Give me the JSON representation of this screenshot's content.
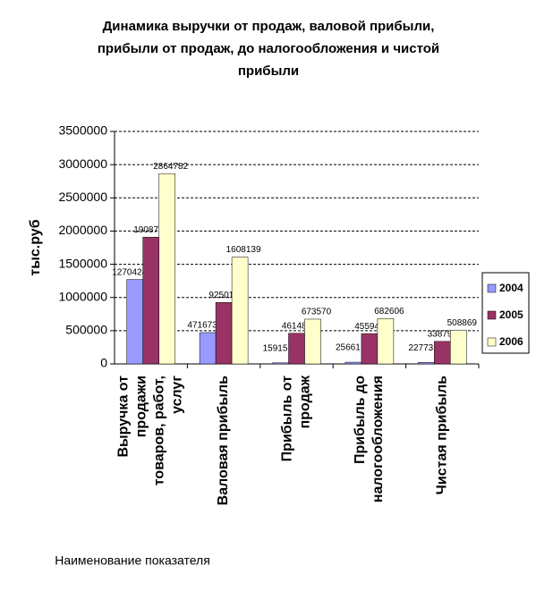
{
  "chart_data": {
    "type": "bar",
    "title": [
      "Динамика выручки от продаж, валовой прибыли,",
      "прибыли от продаж, до налогообложения и чистой",
      "прибыли"
    ],
    "y_label": "тыс.руб",
    "x_label": "Наименование показателя",
    "categories": [
      "Выручка от продажи товаров, работ, услуг",
      "Валовая прибыль",
      "Прибыль от продаж",
      "Прибыль до налогообложения",
      "Чистая прибыль"
    ],
    "series": [
      {
        "name": "2004",
        "color": "#9999ff",
        "values": [
          1270424,
          471673,
          15915,
          25661,
          22773
        ]
      },
      {
        "name": "2005",
        "color": "#993366",
        "values": [
          1908737,
          925016,
          461484,
          455947,
          338794
        ]
      },
      {
        "name": "2006",
        "color": "#ffffcc",
        "values": [
          2864782,
          1608139,
          673570,
          682606,
          508869
        ]
      }
    ],
    "ylim": [
      0,
      3500000
    ],
    "yticks": [
      0,
      500000,
      1000000,
      1500000,
      2000000,
      2500000,
      3000000,
      3500000
    ],
    "grid": true,
    "legend": "right"
  }
}
